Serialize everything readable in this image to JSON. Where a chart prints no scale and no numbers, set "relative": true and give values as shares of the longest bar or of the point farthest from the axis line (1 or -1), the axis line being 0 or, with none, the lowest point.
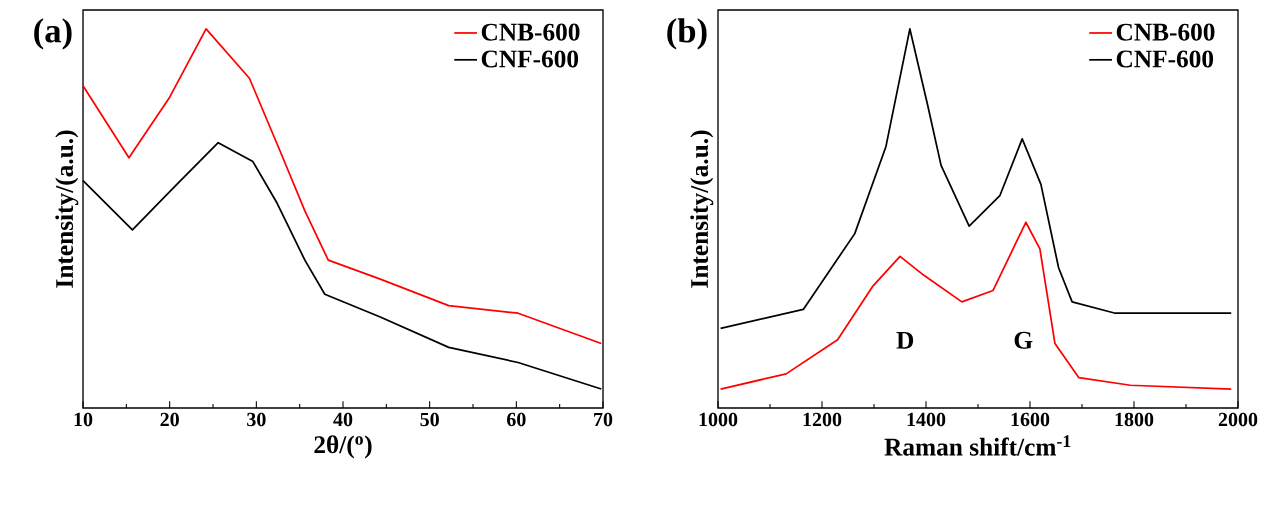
{
  "chart_data": [
    {
      "type": "line",
      "relative": true,
      "xlabel": "2θ/($^{o}$)",
      "ylabel": "Intensity/(a.u.)",
      "xlim": [
        10,
        70
      ],
      "xticks": [
        10,
        20,
        30,
        40,
        50,
        60,
        70
      ],
      "legend": "top right",
      "annotations": [
        "(a)"
      ],
      "series": [
        {
          "name": "CNB-600",
          "color": "#ff0000",
          "x": [
            10,
            15.3,
            20,
            24.2,
            29.2,
            32.7,
            35.6,
            38.3,
            44.3,
            52.2,
            60.2,
            69.8
          ],
          "values": [
            0.85,
            0.66,
            0.82,
            1,
            0.87,
            0.68,
            0.52,
            0.39,
            0.34,
            0.27,
            0.25,
            0.17
          ]
        },
        {
          "name": "CNF-600",
          "color": "#000000",
          "x": [
            10,
            15.7,
            20.4,
            25.6,
            29.6,
            32.4,
            35.6,
            37.9,
            44.3,
            52.2,
            60.2,
            69.8
          ],
          "values": [
            0.6,
            0.47,
            0.58,
            0.7,
            0.65,
            0.54,
            0.39,
            0.3,
            0.24,
            0.16,
            0.12,
            0.05
          ]
        }
      ]
    },
    {
      "type": "line",
      "relative": true,
      "xlabel": "Raman shift/cm$^{-1}$",
      "ylabel": "Intensity/(a.u.)",
      "xlim": [
        1000,
        2000
      ],
      "xticks": [
        1000,
        1200,
        1400,
        1600,
        1800,
        2000
      ],
      "legend": "top right",
      "annotations": [
        "(b)",
        "D",
        "G"
      ],
      "series": [
        {
          "name": "CNB-600",
          "color": "#ff0000",
          "x": [
            1005,
            1131,
            1230,
            1297,
            1350,
            1396,
            1469,
            1529,
            1592,
            1619,
            1648,
            1694,
            1793,
            1987
          ],
          "values": [
            0.05,
            0.09,
            0.18,
            0.32,
            0.4,
            0.35,
            0.28,
            0.31,
            0.49,
            0.42,
            0.17,
            0.08,
            0.06,
            0.05
          ]
        },
        {
          "name": "CNF-600",
          "color": "#000000",
          "x": [
            1005,
            1164,
            1263,
            1323,
            1369,
            1403,
            1429,
            1483,
            1542,
            1585,
            1621,
            1655,
            1681,
            1764,
            1987
          ],
          "values": [
            0.21,
            0.26,
            0.46,
            0.69,
            1,
            0.8,
            0.64,
            0.48,
            0.56,
            0.71,
            0.59,
            0.37,
            0.28,
            0.25,
            0.25
          ]
        }
      ]
    }
  ]
}
